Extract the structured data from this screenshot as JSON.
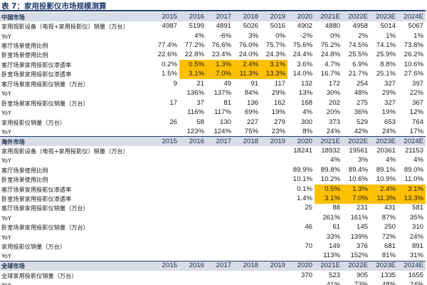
{
  "title": "表 7：家用投影仪市场规模测算",
  "years": [
    "2015",
    "2016",
    "2017",
    "2018",
    "2019",
    "2020",
    "2021E",
    "2022E",
    "2023E",
    "2024E"
  ],
  "sections": [
    {
      "header": "中国市场",
      "rows": [
        {
          "label": "家用观影设备（电视+家用投影仪）销量（万台）",
          "values": [
            "4987",
            "5199",
            "4891",
            "5026",
            "5016",
            "4902",
            "4880",
            "4958",
            "5014",
            "5067"
          ]
        },
        {
          "label": "YoY",
          "values": [
            "",
            "4%",
            "-6%",
            "3%",
            "0%",
            "-2%",
            "0%",
            "2%",
            "1%",
            "1%"
          ]
        },
        {
          "label": "客厅场景使用比例",
          "values": [
            "77.4%",
            "77.2%",
            "76.6%",
            "76.0%",
            "75.7%",
            "75.6%",
            "75.2%",
            "74.5%",
            "74.1%",
            "73.8%"
          ]
        },
        {
          "label": "卧室场景使用比例",
          "values": [
            "22.6%",
            "22.8%",
            "23.4%",
            "24.0%",
            "24.3%",
            "24.4%",
            "24.8%",
            "25.5%",
            "25.9%",
            "26.2%"
          ]
        },
        {
          "label": "客厅场景家用投影仪渗透率",
          "values": [
            "0.2%",
            "0.5%",
            "1.3%",
            "2.4%",
            "3.1%",
            "3.6%",
            "4.7%",
            "6.9%",
            "8.8%",
            "10.6%"
          ],
          "highlight": [
            1,
            2,
            3,
            4
          ]
        },
        {
          "label": "卧室场景家用投影仪渗透率",
          "values": [
            "1.5%",
            "3.1%",
            "7.0%",
            "11.3%",
            "13.3%",
            "14.0%",
            "16.7%",
            "21.7%",
            "25.1%",
            "27.6%"
          ],
          "highlight": [
            1,
            2,
            3,
            4
          ]
        },
        {
          "label": "客厅场景家用投影仪销量（万台）",
          "values": [
            "9",
            "21",
            "49",
            "91",
            "117",
            "132",
            "172",
            "254",
            "327",
            "397"
          ]
        },
        {
          "label": "YoY",
          "values": [
            "",
            "136%",
            "137%",
            "84%",
            "29%",
            "13%",
            "30%",
            "48%",
            "29%",
            "22%"
          ]
        },
        {
          "label": "卧室场景家用投影仪销量（万台）",
          "values": [
            "17",
            "37",
            "81",
            "136",
            "162",
            "168",
            "202",
            "275",
            "327",
            "367"
          ]
        },
        {
          "label": "YoY",
          "values": [
            "",
            "116%",
            "117%",
            "69%",
            "19%",
            "4%",
            "20%",
            "36%",
            "19%",
            "12%"
          ]
        },
        {
          "label": "家用投影仪销量（万台）",
          "values": [
            "26",
            "58",
            "130",
            "227",
            "279",
            "300",
            "373",
            "529",
            "653",
            "764"
          ]
        },
        {
          "label": "YoY",
          "values": [
            "",
            "123%",
            "124%",
            "75%",
            "23%",
            "8%",
            "24%",
            "42%",
            "24%",
            "17%"
          ]
        }
      ]
    },
    {
      "header": "海外市场",
      "rows": [
        {
          "label": "家用观影设备（电视+家用投影仪）销量（万台）",
          "values": [
            "",
            "",
            "",
            "",
            "",
            "18241",
            "18932",
            "19561",
            "20361",
            "21153"
          ]
        },
        {
          "label": "YoY",
          "values": [
            "",
            "",
            "",
            "",
            "",
            "",
            "4%",
            "3%",
            "4%",
            "4%"
          ]
        },
        {
          "label": "客厅场景使用比例",
          "values": [
            "",
            "",
            "",
            "",
            "",
            "89.9%",
            "89.8%",
            "89.4%",
            "89.1%",
            "89.0%"
          ]
        },
        {
          "label": "卧室场景使用比例",
          "values": [
            "",
            "",
            "",
            "",
            "",
            "10.1%",
            "10.2%",
            "10.6%",
            "10.9%",
            "11.0%"
          ]
        },
        {
          "label": "客厅场景家用投影仪渗透率",
          "values": [
            "",
            "",
            "",
            "",
            "",
            "0.1%",
            "0.5%",
            "1.3%",
            "2.4%",
            "3.1%"
          ],
          "highlight": [
            6,
            7,
            8,
            9
          ]
        },
        {
          "label": "卧室场景家用投影仪渗透率",
          "values": [
            "",
            "",
            "",
            "",
            "",
            "1.4%",
            "3.1%",
            "7.0%",
            "11.3%",
            "13.3%"
          ],
          "highlight": [
            6,
            7,
            8,
            9
          ]
        },
        {
          "label": "客厅场景家用投影仪销量（万台）",
          "values": [
            "",
            "",
            "",
            "",
            "",
            "25",
            "88",
            "231",
            "431",
            "581"
          ]
        },
        {
          "label": "YoY",
          "values": [
            "",
            "",
            "",
            "",
            "",
            "",
            "261%",
            "161%",
            "87%",
            "35%"
          ]
        },
        {
          "label": "卧室场景家用投影仪销量（万台）",
          "values": [
            "",
            "",
            "",
            "",
            "",
            "46",
            "61",
            "145",
            "250",
            "310"
          ]
        },
        {
          "label": "YoY",
          "values": [
            "",
            "",
            "",
            "",
            "",
            "",
            "33%",
            "139%",
            "72%",
            "24%"
          ]
        },
        {
          "label": "家用投影仪销量（万台）",
          "values": [
            "",
            "",
            "",
            "",
            "",
            "70",
            "149",
            "376",
            "681",
            "891"
          ]
        },
        {
          "label": "YoY",
          "values": [
            "",
            "",
            "",
            "",
            "",
            "",
            "113%",
            "152%",
            "81%",
            "31%"
          ]
        }
      ]
    },
    {
      "header": "全球市场",
      "rows": [
        {
          "label": "全球家用投影仪销量（万台）",
          "values": [
            "",
            "",
            "",
            "",
            "",
            "370",
            "523",
            "905",
            "1335",
            "1655"
          ]
        },
        {
          "label": "YoY",
          "values": [
            "",
            "",
            "",
            "",
            "",
            "",
            "41%",
            "73%",
            "48%",
            "24%"
          ]
        }
      ]
    }
  ]
}
